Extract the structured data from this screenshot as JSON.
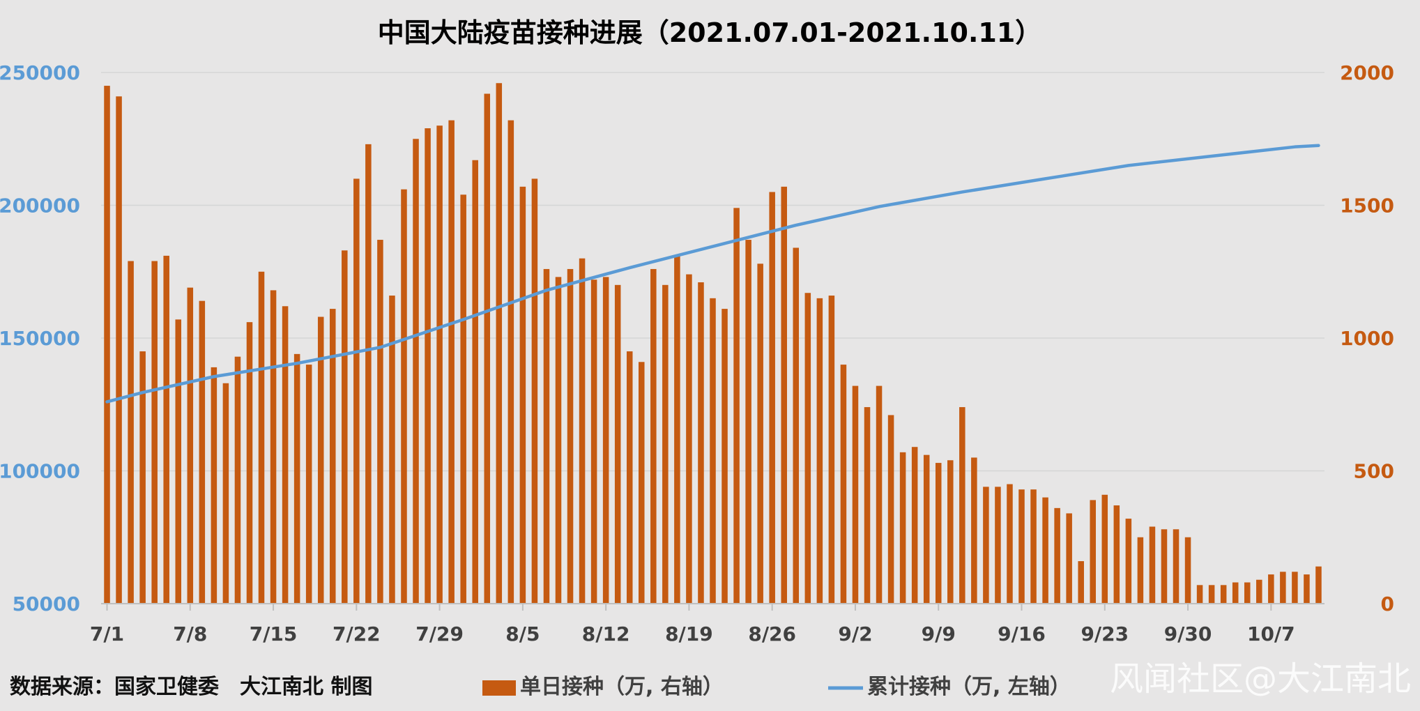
{
  "chart_data": {
    "type": "bar",
    "title": "中国大陆疫苗接种进展（2021.07.01-2021.10.11）",
    "x_tick_labels": [
      "7/1",
      "7/8",
      "7/15",
      "7/22",
      "7/29",
      "8/5",
      "8/12",
      "8/19",
      "8/26",
      "9/2",
      "9/9",
      "9/16",
      "9/23",
      "9/30",
      "10/7"
    ],
    "left_axis": {
      "ticks": [
        "250000",
        "200000",
        "150000",
        "100000",
        "50000"
      ],
      "ylim": [
        50000,
        250000
      ],
      "color": "#5b9bd5"
    },
    "right_axis": {
      "ticks": [
        "2000",
        "1500",
        "1000",
        "500",
        "0"
      ],
      "ylim": [
        0,
        2000
      ],
      "color": "#c55a11"
    },
    "grid": true,
    "series": [
      {
        "name": "单日接种（万, 右轴）",
        "type": "bar",
        "axis": "right",
        "color": "#c55a11",
        "values": [
          1950,
          1910,
          1290,
          950,
          1290,
          1310,
          1070,
          1190,
          1140,
          890,
          830,
          930,
          1060,
          1250,
          1180,
          1120,
          940,
          900,
          1080,
          1110,
          1330,
          1600,
          1730,
          1370,
          1160,
          1560,
          1750,
          1790,
          1800,
          1820,
          1540,
          1670,
          1920,
          1960,
          1820,
          1570,
          1600,
          1260,
          1230,
          1260,
          1300,
          1220,
          1230,
          1200,
          950,
          910,
          1260,
          1200,
          1310,
          1240,
          1210,
          1150,
          1110,
          1490,
          1370,
          1280,
          1550,
          1570,
          1340,
          1170,
          1150,
          1160,
          900,
          820,
          740,
          820,
          710,
          570,
          590,
          560,
          530,
          540,
          740,
          550,
          440,
          440,
          450,
          430,
          430,
          400,
          360,
          340,
          160,
          390,
          410,
          370,
          320,
          250,
          290,
          280,
          280,
          250,
          70,
          70,
          70,
          80,
          80,
          90,
          110,
          120,
          120,
          110,
          140
        ],
        "bar_width_ratio": 0.5
      },
      {
        "name": "累计接种（万, 左轴）",
        "type": "line",
        "axis": "left",
        "color": "#5b9bd5",
        "x": [
          0,
          3,
          9,
          16,
          23,
          30,
          37,
          44,
          51,
          58,
          65,
          72,
          79,
          86,
          93,
          100,
          102
        ],
        "values": [
          126000,
          129500,
          135500,
          140500,
          146500,
          157000,
          168000,
          176500,
          184500,
          192500,
          199500,
          205000,
          210000,
          215000,
          218500,
          222000,
          222500
        ]
      }
    ],
    "legend_position": "bottom"
  },
  "footer": {
    "source": "数据来源：国家卫健委　大江南北 制图"
  },
  "watermark": "风闻社区@大江南北"
}
